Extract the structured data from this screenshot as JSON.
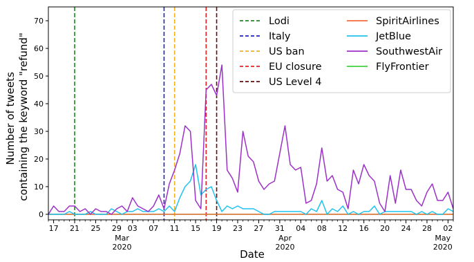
{
  "chart_data": {
    "type": "line",
    "title": "",
    "xlabel": "Date",
    "ylabel_lines": [
      "Number of tweets",
      "containing the keyword \"refund\""
    ],
    "ylim": [
      -2,
      75
    ],
    "yticks": [
      0,
      10,
      20,
      30,
      40,
      50,
      60,
      70
    ],
    "x_start": "2020-02-16",
    "x_end": "2020-05-03",
    "x": [
      "2020-02-16",
      "2020-02-17",
      "2020-02-18",
      "2020-02-19",
      "2020-02-20",
      "2020-02-21",
      "2020-02-22",
      "2020-02-23",
      "2020-02-24",
      "2020-02-25",
      "2020-02-26",
      "2020-02-27",
      "2020-02-28",
      "2020-02-29",
      "2020-03-01",
      "2020-03-02",
      "2020-03-03",
      "2020-03-04",
      "2020-03-05",
      "2020-03-06",
      "2020-03-07",
      "2020-03-08",
      "2020-03-09",
      "2020-03-10",
      "2020-03-11",
      "2020-03-12",
      "2020-03-13",
      "2020-03-14",
      "2020-03-15",
      "2020-03-16",
      "2020-03-17",
      "2020-03-18",
      "2020-03-19",
      "2020-03-20",
      "2020-03-21",
      "2020-03-22",
      "2020-03-23",
      "2020-03-24",
      "2020-03-25",
      "2020-03-26",
      "2020-03-27",
      "2020-03-28",
      "2020-03-29",
      "2020-03-30",
      "2020-03-31",
      "2020-04-01",
      "2020-04-02",
      "2020-04-03",
      "2020-04-04",
      "2020-04-05",
      "2020-04-06",
      "2020-04-07",
      "2020-04-08",
      "2020-04-09",
      "2020-04-10",
      "2020-04-11",
      "2020-04-12",
      "2020-04-13",
      "2020-04-14",
      "2020-04-15",
      "2020-04-16",
      "2020-04-17",
      "2020-04-18",
      "2020-04-19",
      "2020-04-20",
      "2020-04-21",
      "2020-04-22",
      "2020-04-23",
      "2020-04-24",
      "2020-04-25",
      "2020-04-26",
      "2020-04-27",
      "2020-04-28",
      "2020-04-29",
      "2020-04-30",
      "2020-05-01",
      "2020-05-02",
      "2020-05-03"
    ],
    "xticks": [
      {
        "date": "2020-02-17",
        "label": "17",
        "sub": [
          "",
          ""
        ]
      },
      {
        "date": "2020-02-21",
        "label": "21",
        "sub": [
          "",
          ""
        ]
      },
      {
        "date": "2020-02-25",
        "label": "25",
        "sub": [
          "",
          ""
        ]
      },
      {
        "date": "2020-02-29",
        "label": "29",
        "sub": [
          "",
          ""
        ]
      },
      {
        "date": "2020-03-03",
        "label": "03",
        "sub": [
          "",
          ""
        ]
      },
      {
        "date": "2020-03-07",
        "label": "07",
        "sub": [
          "",
          ""
        ]
      },
      {
        "date": "2020-03-11",
        "label": "11",
        "sub": [
          "",
          ""
        ]
      },
      {
        "date": "2020-03-15",
        "label": "15",
        "sub": [
          "",
          ""
        ]
      },
      {
        "date": "2020-03-19",
        "label": "19",
        "sub": [
          "",
          ""
        ]
      },
      {
        "date": "2020-03-23",
        "label": "23",
        "sub": [
          "",
          ""
        ]
      },
      {
        "date": "2020-03-27",
        "label": "27",
        "sub": [
          "",
          ""
        ]
      },
      {
        "date": "2020-03-31",
        "label": "31",
        "sub": [
          "",
          ""
        ]
      },
      {
        "date": "2020-04-04",
        "label": "04",
        "sub": [
          "",
          ""
        ]
      },
      {
        "date": "2020-04-08",
        "label": "08",
        "sub": [
          "",
          ""
        ]
      },
      {
        "date": "2020-04-12",
        "label": "12",
        "sub": [
          "",
          ""
        ]
      },
      {
        "date": "2020-04-16",
        "label": "16",
        "sub": [
          "",
          ""
        ]
      },
      {
        "date": "2020-04-20",
        "label": "20",
        "sub": [
          "",
          ""
        ]
      },
      {
        "date": "2020-04-24",
        "label": "24",
        "sub": [
          "",
          ""
        ]
      },
      {
        "date": "2020-04-28",
        "label": "28",
        "sub": [
          "",
          ""
        ]
      },
      {
        "date": "2020-05-02",
        "label": "02",
        "sub": [
          "",
          ""
        ]
      }
    ],
    "month_labels": [
      {
        "date": "2020-03-01",
        "lines": [
          "Mar",
          "2020"
        ]
      },
      {
        "date": "2020-04-01",
        "lines": [
          "Apr",
          "2020"
        ]
      },
      {
        "date": "2020-05-01",
        "lines": [
          "May",
          "2020"
        ]
      }
    ],
    "vlines": [
      {
        "name": "Lodi",
        "date": "2020-02-21",
        "color": "#1a8a1a"
      },
      {
        "name": "Italy",
        "date": "2020-03-09",
        "color": "#1f1fcf"
      },
      {
        "name": "US ban",
        "date": "2020-03-11",
        "color": "#f2b01e"
      },
      {
        "name": "EU closure",
        "date": "2020-03-17",
        "color": "#ee1c1c"
      },
      {
        "name": "US Level 4",
        "date": "2020-03-19",
        "color": "#6b0a0a"
      }
    ],
    "series": [
      {
        "name": "SpiritAirlines",
        "color": "#f26b3a",
        "values": [
          0,
          0,
          0,
          0,
          0,
          0,
          0,
          0,
          0,
          0,
          0,
          0,
          0,
          0,
          0,
          0,
          0,
          0,
          0,
          0,
          0,
          0,
          0,
          0,
          0,
          0,
          0,
          0,
          0,
          0,
          0,
          0,
          0,
          0,
          0,
          0,
          0,
          0,
          0,
          0,
          0,
          0,
          0,
          0,
          0,
          0,
          0,
          0,
          0,
          0,
          0,
          0,
          0,
          0,
          0,
          0,
          0,
          0,
          0,
          0,
          0,
          0,
          0,
          0,
          0,
          0,
          0,
          0,
          0,
          0,
          0,
          0,
          0,
          0,
          0,
          0,
          0,
          0
        ]
      },
      {
        "name": "JetBlue",
        "color": "#1ec2ee",
        "values": [
          0,
          0,
          0,
          0,
          1,
          0,
          0,
          0,
          1,
          0,
          0,
          0,
          2,
          1,
          0,
          1,
          1,
          2,
          1,
          1,
          1,
          2,
          1,
          3,
          1,
          6,
          10,
          12,
          18,
          7,
          9,
          10,
          5,
          1,
          3,
          2,
          3,
          2,
          2,
          2,
          1,
          0,
          0,
          1,
          1,
          1,
          1,
          1,
          1,
          0,
          2,
          1,
          5,
          0,
          2,
          1,
          3,
          0,
          1,
          0,
          1,
          1,
          3,
          0,
          1,
          1,
          1,
          1,
          1,
          1,
          0,
          1,
          0,
          1,
          0,
          0,
          2,
          1
        ]
      },
      {
        "name": "SouthwestAir",
        "color": "#9b30c8",
        "values": [
          0,
          3,
          1,
          1,
          3,
          3,
          1,
          2,
          0,
          2,
          1,
          1,
          0,
          2,
          3,
          1,
          6,
          3,
          2,
          1,
          3,
          7,
          2,
          11,
          16,
          22,
          32,
          30,
          5,
          2,
          45,
          47,
          43,
          54,
          16,
          13,
          8,
          30,
          21,
          19,
          12,
          9,
          11,
          12,
          22,
          32,
          18,
          16,
          17,
          4,
          5,
          11,
          24,
          12,
          14,
          9,
          8,
          2,
          16,
          11,
          18,
          14,
          12,
          4,
          1,
          14,
          4,
          16,
          9,
          9,
          5,
          3,
          8,
          11,
          5,
          5,
          8,
          2
        ]
      },
      {
        "name": "FlyFrontier",
        "color": "#3ecf3e",
        "values": [
          0,
          0,
          0,
          0,
          0,
          0,
          0,
          0,
          0,
          0,
          0,
          0,
          0,
          0,
          0,
          0,
          0,
          0,
          0,
          0,
          0,
          0,
          0,
          0,
          0,
          0,
          0,
          0,
          0,
          0,
          0,
          0,
          0,
          0,
          0,
          0,
          0,
          0,
          0,
          0,
          0,
          0,
          0,
          0,
          0,
          0,
          0,
          0,
          0,
          0,
          0,
          0,
          0,
          0,
          0,
          0,
          0,
          0,
          0,
          0,
          0,
          0,
          0,
          0,
          0,
          0,
          0,
          0,
          0,
          0,
          0,
          0,
          0,
          0,
          0,
          0,
          0,
          0
        ]
      }
    ],
    "legend": {
      "placement": "top-right",
      "columns": 2
    },
    "grid": false
  }
}
